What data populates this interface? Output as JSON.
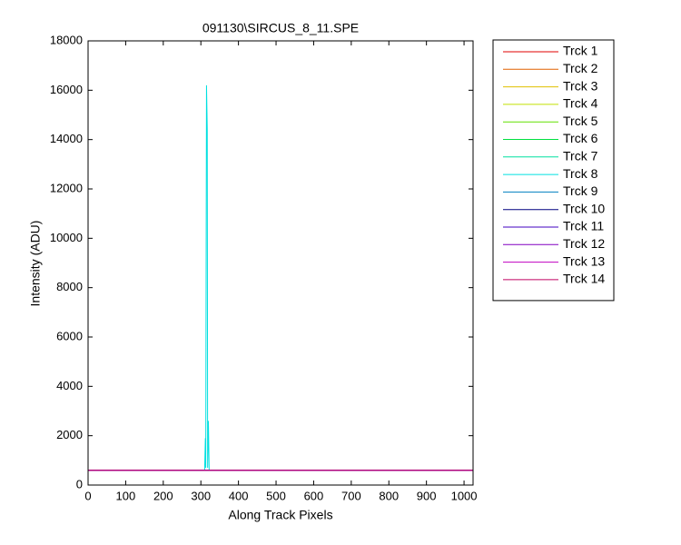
{
  "chart_data": {
    "type": "line",
    "title": "091130\\SIRCUS_8_11.SPE",
    "x_label": "Along Track Pixels",
    "y_label": "Intensity (ADU)",
    "x": [
      0,
      100,
      200,
      300,
      310,
      312,
      313,
      315,
      317,
      318,
      320,
      322,
      330,
      400,
      500,
      600,
      700,
      800,
      900,
      1024
    ],
    "series": [
      {
        "name": "Trck 1",
        "color": "#e00000",
        "values": [
          600,
          600,
          600,
          600,
          600,
          600,
          600,
          600,
          600,
          600,
          600,
          600,
          600,
          600,
          600,
          600,
          600,
          600,
          600,
          600
        ]
      },
      {
        "name": "Trck 2",
        "color": "#e06000",
        "values": [
          600,
          600,
          600,
          600,
          600,
          600,
          600,
          600,
          600,
          600,
          600,
          600,
          600,
          600,
          600,
          600,
          600,
          600,
          600,
          600
        ]
      },
      {
        "name": "Trck 3",
        "color": "#e0c000",
        "values": [
          600,
          600,
          600,
          600,
          600,
          600,
          600,
          600,
          600,
          600,
          600,
          600,
          600,
          600,
          600,
          600,
          600,
          600,
          600,
          600
        ]
      },
      {
        "name": "Trck 4",
        "color": "#c0e000",
        "values": [
          600,
          600,
          600,
          600,
          600,
          600,
          600,
          600,
          600,
          600,
          600,
          600,
          600,
          600,
          600,
          600,
          600,
          600,
          600,
          600
        ]
      },
      {
        "name": "Trck 5",
        "color": "#60e000",
        "values": [
          600,
          600,
          600,
          600,
          600,
          600,
          600,
          600,
          600,
          600,
          600,
          600,
          600,
          600,
          600,
          600,
          600,
          600,
          600,
          600
        ]
      },
      {
        "name": "Trck 6",
        "color": "#00e040",
        "values": [
          600,
          600,
          600,
          600,
          600,
          600,
          600,
          600,
          600,
          600,
          600,
          600,
          600,
          600,
          600,
          600,
          600,
          600,
          600,
          600
        ]
      },
      {
        "name": "Trck 7",
        "color": "#00e0a0",
        "values": [
          600,
          600,
          600,
          600,
          600,
          600,
          600,
          600,
          600,
          600,
          600,
          600,
          600,
          600,
          600,
          600,
          600,
          600,
          600,
          600
        ]
      },
      {
        "name": "Trck 8",
        "color": "#00e0e0",
        "values": [
          600,
          600,
          600,
          600,
          600,
          1900,
          700,
          16200,
          14400,
          700,
          2600,
          600,
          600,
          600,
          600,
          600,
          600,
          600,
          600,
          600
        ]
      },
      {
        "name": "Trck 9",
        "color": "#0080c0",
        "values": [
          600,
          600,
          600,
          600,
          600,
          600,
          600,
          600,
          600,
          600,
          600,
          600,
          600,
          600,
          600,
          600,
          600,
          600,
          600,
          600
        ]
      },
      {
        "name": "Trck 10",
        "color": "#000080",
        "values": [
          600,
          600,
          600,
          600,
          600,
          600,
          600,
          600,
          600,
          600,
          600,
          600,
          600,
          600,
          600,
          600,
          600,
          600,
          600,
          600
        ]
      },
      {
        "name": "Trck 11",
        "color": "#4000c0",
        "values": [
          600,
          600,
          600,
          600,
          600,
          600,
          600,
          600,
          600,
          600,
          600,
          600,
          600,
          600,
          600,
          600,
          600,
          600,
          600,
          600
        ]
      },
      {
        "name": "Trck 12",
        "color": "#8000c0",
        "values": [
          600,
          600,
          600,
          600,
          600,
          600,
          600,
          600,
          600,
          600,
          600,
          600,
          600,
          600,
          600,
          600,
          600,
          600,
          600,
          600
        ]
      },
      {
        "name": "Trck 13",
        "color": "#c000c0",
        "values": [
          600,
          600,
          600,
          600,
          600,
          600,
          600,
          600,
          600,
          600,
          600,
          600,
          600,
          600,
          600,
          600,
          600,
          600,
          600,
          600
        ]
      },
      {
        "name": "Trck 14",
        "color": "#c00060",
        "values": [
          600,
          600,
          600,
          600,
          600,
          600,
          600,
          600,
          600,
          600,
          600,
          600,
          600,
          600,
          600,
          600,
          600,
          600,
          600,
          600
        ]
      }
    ],
    "xlim": [
      0,
      1024
    ],
    "xticks": [
      0,
      100,
      200,
      300,
      400,
      500,
      600,
      700,
      800,
      900,
      1000
    ],
    "ylim": [
      0,
      18000
    ],
    "yticks": [
      0,
      2000,
      4000,
      6000,
      8000,
      10000,
      12000,
      14000,
      16000,
      18000
    ],
    "grid": false,
    "legend": "outside-right"
  }
}
